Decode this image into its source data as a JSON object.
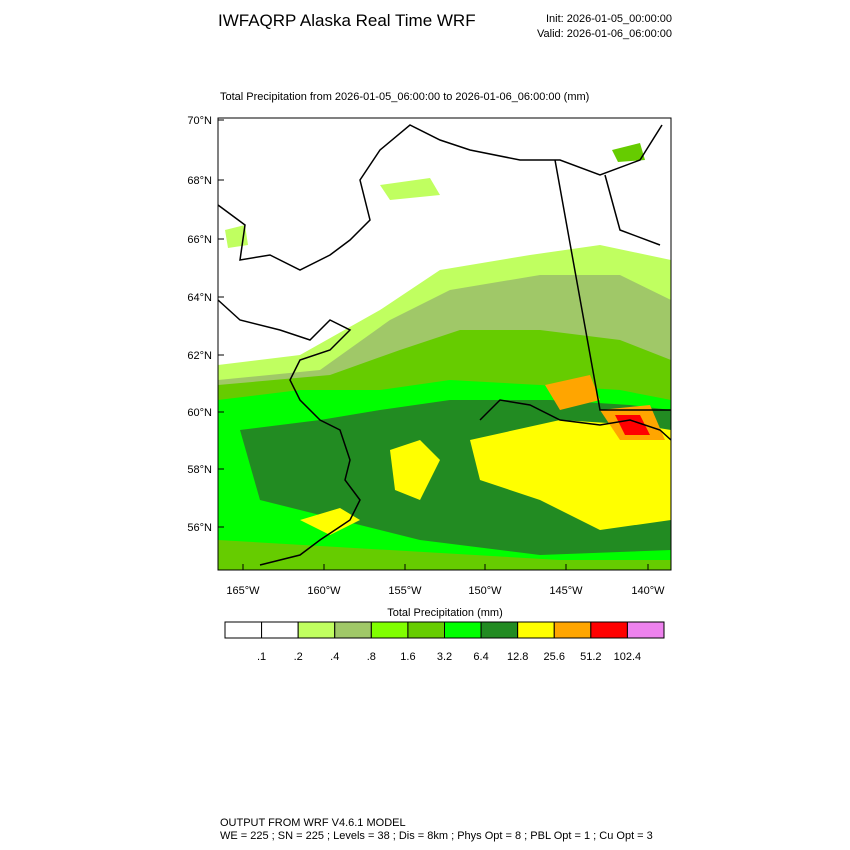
{
  "header": {
    "title": "IWFAQRP Alaska Real Time WRF",
    "init": "Init: 2026-01-05_00:00:00",
    "valid": "Valid: 2026-01-06_06:00:00"
  },
  "map": {
    "subtitle": "Total Precipitation from 2026-01-05_06:00:00 to 2026-01-06_06:00:00   (mm)",
    "lat_labels": [
      "70°N",
      "68°N",
      "66°N",
      "64°N",
      "62°N",
      "60°N",
      "58°N",
      "56°N"
    ],
    "lon_labels": [
      "165°W",
      "160°W",
      "155°W",
      "150°W",
      "145°W",
      "140°W"
    ]
  },
  "colorbar": {
    "title": "Total Precipitation  (mm)",
    "colors": [
      "#ffffff",
      "#ffffff",
      "#c0ff60",
      "#a0c868",
      "#80ff00",
      "#66cc00",
      "#00ff00",
      "#228b22",
      "#ffff00",
      "#ffa500",
      "#ff0000",
      "#ee82ee"
    ],
    "labels": [
      ".1",
      ".2",
      ".4",
      ".8",
      "1.6",
      "3.2",
      "6.4",
      "12.8",
      "25.6",
      "51.2",
      "102.4"
    ]
  },
  "footer": {
    "line1": "OUTPUT FROM WRF V4.6.1 MODEL",
    "line2": "WE = 225 ; SN = 225 ; Levels = 38 ; Dis = 8km ; Phys Opt = 8 ; PBL Opt = 1 ; Cu Opt = 3"
  }
}
